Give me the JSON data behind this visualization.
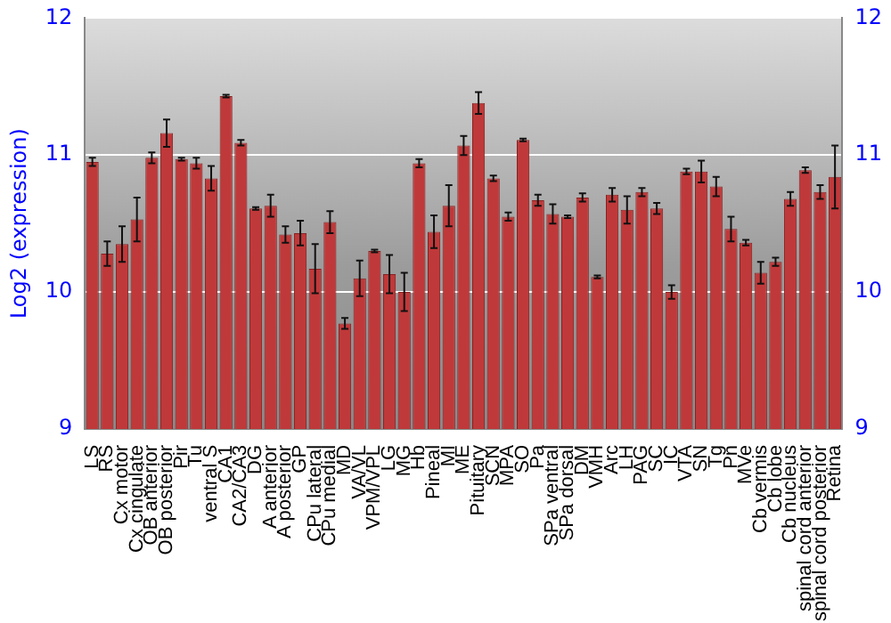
{
  "chart_data": {
    "type": "bar",
    "ylabel": "Log2 (expression)",
    "categories": [
      "LS",
      "RS",
      "Cx motor",
      "Cx cingulate",
      "OB anterior",
      "OB posterior",
      "Pir",
      "Tu",
      "ventral S",
      "CA1",
      "CA2/CA3",
      "DG",
      "A anterior",
      "A posterior",
      "GP",
      "CPu lateral",
      "CPu medial",
      "MD",
      "VA/VL",
      "VPM/VPL",
      "LG",
      "MG",
      "Hb",
      "Pineal",
      "MI",
      "ME",
      "Pituitary",
      "SCN",
      "MPA",
      "SO",
      "Pa",
      "SPa ventral",
      "SPa dorsal",
      "DM",
      "VMH",
      "Arc",
      "LH",
      "PAG",
      "SC",
      "IC",
      "VTA",
      "SN",
      "Tg",
      "Pn",
      "MVe",
      "Cb vermis",
      "Cb lobe",
      "Cb nucleus",
      "spinal cord anterior",
      "spinal cord posterior",
      "Retina"
    ],
    "values": [
      10.95,
      10.28,
      10.35,
      10.53,
      10.98,
      11.16,
      10.97,
      10.94,
      10.83,
      11.43,
      11.09,
      10.61,
      10.63,
      10.42,
      10.43,
      10.17,
      10.51,
      9.77,
      10.1,
      10.3,
      10.13,
      10.0,
      10.94,
      10.44,
      10.63,
      11.07,
      11.38,
      10.83,
      10.55,
      11.11,
      10.67,
      10.57,
      10.55,
      10.69,
      10.11,
      10.71,
      10.6,
      10.73,
      10.61,
      10.0,
      10.88,
      10.88,
      10.77,
      10.46,
      10.36,
      10.14,
      10.22,
      10.68,
      10.89,
      10.73,
      10.84
    ],
    "errors": [
      0.03,
      0.09,
      0.13,
      0.16,
      0.04,
      0.1,
      0.01,
      0.04,
      0.09,
      0.01,
      0.02,
      0.01,
      0.08,
      0.06,
      0.09,
      0.18,
      0.08,
      0.04,
      0.13,
      0.01,
      0.14,
      0.14,
      0.03,
      0.12,
      0.15,
      0.07,
      0.08,
      0.02,
      0.03,
      0.01,
      0.04,
      0.07,
      0.01,
      0.03,
      0.01,
      0.05,
      0.1,
      0.03,
      0.04,
      0.05,
      0.02,
      0.08,
      0.07,
      0.09,
      0.02,
      0.08,
      0.03,
      0.05,
      0.02,
      0.05,
      0.23
    ],
    "color": "#c0393a",
    "ylim": [
      9,
      12
    ],
    "yticks": [
      9,
      10,
      11,
      12
    ],
    "y2lim": [
      9,
      12
    ],
    "y2ticks": [
      9,
      10,
      11,
      12
    ],
    "grid": "y",
    "legend": false
  }
}
